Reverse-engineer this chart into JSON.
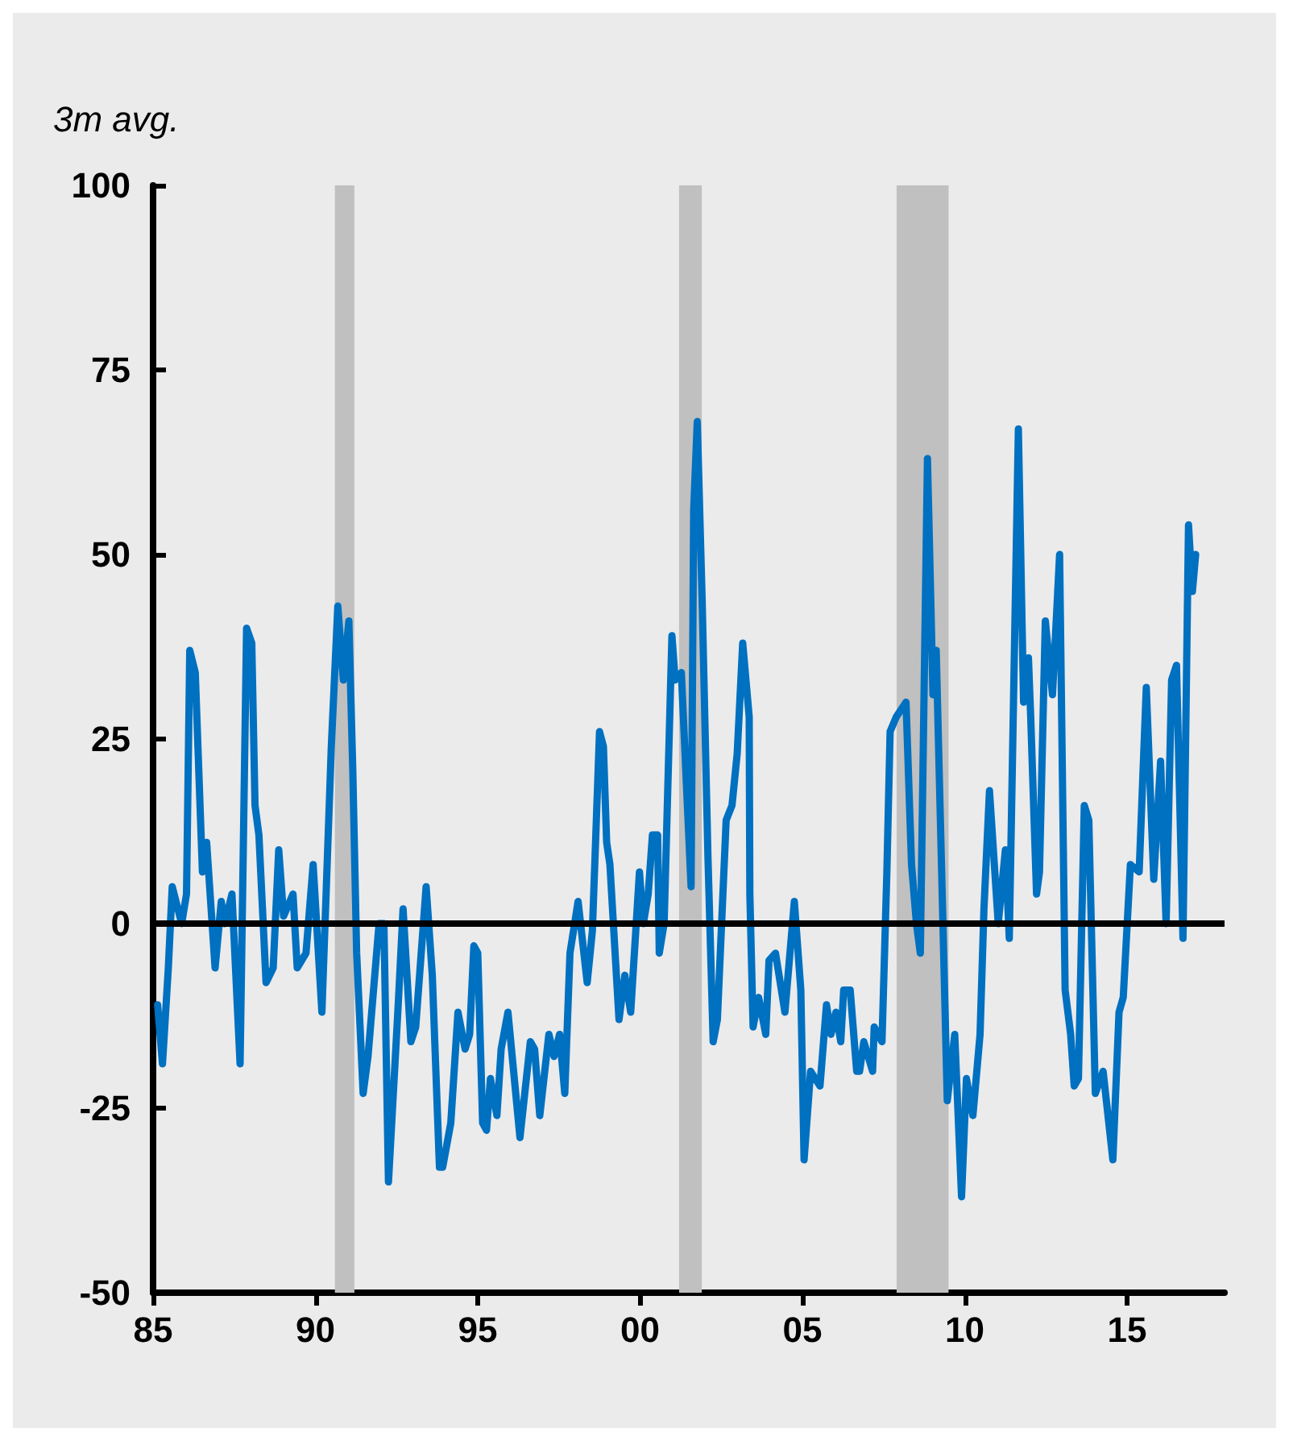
{
  "chart_data": {
    "type": "line",
    "ylabel": "3m avg.",
    "x": [
      1985.14,
      1985.29,
      1985.47,
      1985.59,
      1985.88,
      1986.03,
      1986.13,
      1986.3,
      1986.52,
      1986.65,
      1986.91,
      1987.1,
      1987.21,
      1987.43,
      1987.68,
      1987.88,
      1988.04,
      1988.14,
      1988.26,
      1988.48,
      1988.7,
      1988.87,
      1989.02,
      1989.31,
      1989.44,
      1989.71,
      1989.93,
      1990.2,
      1990.49,
      1990.69,
      1990.86,
      1991.03,
      1991.15,
      1991.27,
      1991.47,
      1991.62,
      1991.96,
      1992.11,
      1992.25,
      1992.55,
      1992.7,
      1992.94,
      1993.09,
      1993.41,
      1993.6,
      1993.82,
      1993.92,
      1994.17,
      1994.39,
      1994.61,
      1994.75,
      1994.88,
      1995.0,
      1995.15,
      1995.27,
      1995.39,
      1995.59,
      1995.72,
      1995.93,
      1996.3,
      1996.62,
      1996.75,
      1996.91,
      1997.19,
      1997.35,
      1997.52,
      1997.68,
      1997.84,
      1998.09,
      1998.37,
      1998.53,
      1998.75,
      1998.87,
      1998.97,
      1999.07,
      1999.35,
      1999.53,
      1999.71,
      1999.98,
      2000.1,
      2000.25,
      2000.38,
      2000.54,
      2000.59,
      2000.74,
      2000.98,
      2001.08,
      2001.27,
      2001.57,
      2001.65,
      2001.76,
      2001.91,
      2002.09,
      2002.25,
      2002.38,
      2002.65,
      2002.83,
      2002.99,
      2003.16,
      2003.36,
      2003.38,
      2003.48,
      2003.65,
      2003.87,
      2003.97,
      2004.17,
      2004.46,
      2004.75,
      2004.95,
      2005.05,
      2005.25,
      2005.54,
      2005.74,
      2005.88,
      2006.03,
      2006.18,
      2006.27,
      2006.47,
      2006.67,
      2006.76,
      2006.89,
      2007.16,
      2007.21,
      2007.45,
      2007.6,
      2007.7,
      2007.89,
      2008.19,
      2008.36,
      2008.51,
      2008.63,
      2008.85,
      2009.02,
      2009.12,
      2009.36,
      2009.46,
      2009.69,
      2009.9,
      2010.05,
      2010.25,
      2010.47,
      2010.59,
      2010.76,
      2011.03,
      2011.25,
      2011.37,
      2011.65,
      2011.81,
      2011.96,
      2012.03,
      2012.21,
      2012.3,
      2012.48,
      2012.7,
      2012.92,
      2013.09,
      2013.26,
      2013.37,
      2013.5,
      2013.68,
      2013.82,
      2014.02,
      2014.26,
      2014.56,
      2014.75,
      2014.88,
      2015.1,
      2015.37,
      2015.59,
      2015.82,
      2016.03,
      2016.2,
      2016.37,
      2016.52,
      2016.72,
      2016.89,
      2017.01,
      2017.11
    ],
    "series": [
      {
        "color": "#0070c0",
        "values": [
          -11,
          -19,
          -6,
          5,
          0,
          4,
          37,
          34,
          7,
          11,
          -6,
          3,
          0,
          4,
          -19,
          40,
          38,
          16,
          12,
          -8,
          -6,
          10,
          1,
          4,
          -6,
          -4,
          8,
          -12,
          24,
          43,
          33,
          41,
          21,
          -4,
          -23,
          -18,
          0,
          0,
          -35,
          -11,
          2,
          -16,
          -14,
          5,
          -7,
          -33,
          -33,
          -27,
          -12,
          -17,
          -15,
          -3,
          -4,
          -27,
          -28,
          -21,
          -26,
          -17,
          -12,
          -29,
          -16,
          -17,
          -26,
          -15,
          -18,
          -15,
          -23,
          -4,
          3,
          -8,
          -1,
          26,
          24,
          11,
          8,
          -13,
          -7,
          -12,
          7,
          0,
          4,
          12,
          12,
          -4,
          0,
          39,
          33,
          34,
          5,
          56,
          68,
          44,
          9,
          -16,
          -13,
          14,
          16,
          23,
          38,
          28,
          4,
          -14,
          -10,
          -15,
          -5,
          -4,
          -12,
          3,
          -9,
          -32,
          -20,
          -22,
          -11,
          -15,
          -12,
          -16,
          -9,
          -9,
          -20,
          -20,
          -16,
          -20,
          -14,
          -16,
          7,
          26,
          28,
          30,
          8,
          0,
          -4,
          63,
          31,
          37,
          -6,
          -24,
          -15,
          -37,
          -21,
          -26,
          -15,
          2,
          18,
          0,
          10,
          -2,
          67,
          30,
          36,
          28,
          4,
          7,
          41,
          31,
          50,
          -9,
          -15,
          -22,
          -21,
          16,
          14,
          -23,
          -20,
          -32,
          -12,
          -10,
          8,
          7,
          32,
          6,
          22,
          0,
          33,
          35,
          -2,
          54,
          45,
          50
        ]
      }
    ],
    "xlim": [
      1985,
      2018
    ],
    "xticks": [
      {
        "value": 1985,
        "label": "85"
      },
      {
        "value": 1990,
        "label": "90"
      },
      {
        "value": 1995,
        "label": "95"
      },
      {
        "value": 2000,
        "label": "00"
      },
      {
        "value": 2005,
        "label": "05"
      },
      {
        "value": 2010,
        "label": "10"
      },
      {
        "value": 2015,
        "label": "15"
      }
    ],
    "ylim": [
      -50,
      100
    ],
    "yticks": [
      -50,
      -25,
      0,
      25,
      50,
      75,
      100
    ],
    "bands": [
      {
        "axis": "x",
        "from": 1990.6,
        "to": 1991.2,
        "color": "#c0c0c0"
      },
      {
        "axis": "x",
        "from": 2001.2,
        "to": 2001.9,
        "color": "#c0c0c0"
      },
      {
        "axis": "x",
        "from": 2007.9,
        "to": 2009.5,
        "color": "#c0c0c0"
      }
    ],
    "ref_lines": [
      {
        "axis": "y",
        "value": 0,
        "color": "#000000"
      }
    ],
    "grid": false,
    "marker": "none",
    "line_style": "solid"
  }
}
